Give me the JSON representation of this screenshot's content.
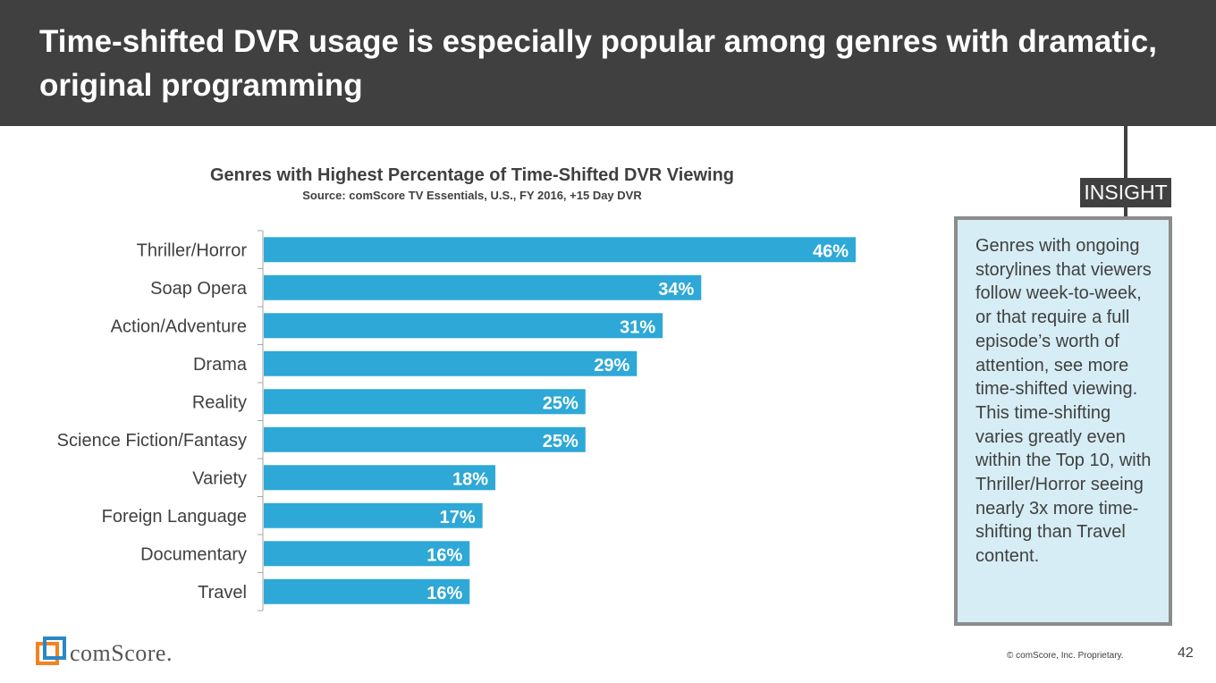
{
  "header": {
    "title": "Time-shifted DVR usage is especially popular among genres with dramatic, original programming"
  },
  "chart_data": {
    "type": "bar",
    "orientation": "horizontal",
    "title": "Genres with Highest Percentage of Time-Shifted DVR Viewing",
    "subtitle": "Source: comScore TV Essentials, U.S., FY 2016, +15 Day DVR",
    "categories": [
      "Thriller/Horror",
      "Soap Opera",
      "Action/Adventure",
      "Drama",
      "Reality",
      "Science Fiction/Fantasy",
      "Variety",
      "Foreign Language",
      "Documentary",
      "Travel"
    ],
    "values": [
      46,
      34,
      31,
      29,
      25,
      25,
      18,
      17,
      16,
      16
    ],
    "value_labels": [
      "46%",
      "34%",
      "31%",
      "29%",
      "25%",
      "25%",
      "18%",
      "17%",
      "16%",
      "16%"
    ],
    "xlim": [
      0,
      50
    ],
    "xlabel": "",
    "ylabel": "",
    "grid": false,
    "legend": "none",
    "colors": {
      "bar": "#2ea8d6"
    }
  },
  "insight": {
    "tag": "INSIGHT",
    "text": "Genres with ongoing storylines that viewers follow week-to-week, or that require a full episode’s worth of attention, see more time-shifted viewing. This time-shifting varies greatly even within the Top 10, with Thriller/Horror seeing nearly 3x more time-shifting than Travel content."
  },
  "footer": {
    "logo_text": "comScore.",
    "copyright": "© comScore, Inc. Proprietary.",
    "page_number": "42"
  },
  "colors": {
    "header_bg": "#404040",
    "accent": "#2ea8d6",
    "insight_bg": "#d6edf5",
    "logo_orange": "#f58220",
    "logo_blue": "#2a87c8"
  }
}
